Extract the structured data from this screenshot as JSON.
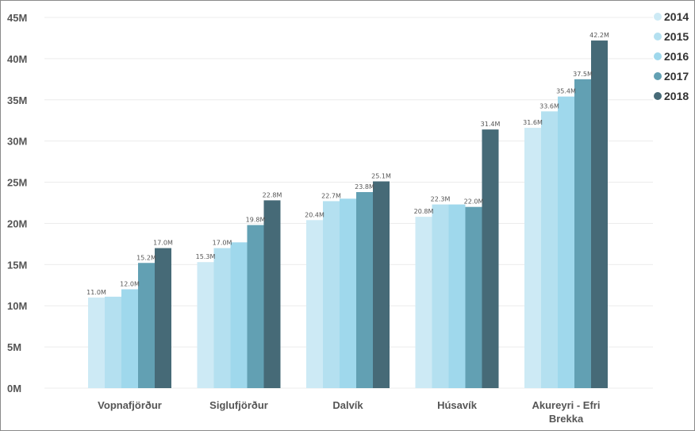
{
  "chart_data": {
    "type": "bar",
    "categories": [
      "Vopnafjörður",
      "Siglufjörður",
      "Dalvík",
      "Húsavík",
      "Akureyri - Efri Brekka"
    ],
    "category_lines": [
      [
        "Vopnafjörður"
      ],
      [
        "Siglufjörður"
      ],
      [
        "Dalvík"
      ],
      [
        "Húsavík"
      ],
      [
        "Akureyri - Efri",
        "Brekka"
      ]
    ],
    "series": [
      {
        "name": "2014",
        "color": "#cdeaf5",
        "values": [
          11.0,
          15.3,
          20.4,
          20.8,
          31.6
        ]
      },
      {
        "name": "2015",
        "color": "#b4e0f0",
        "values": [
          11.1,
          17.0,
          22.7,
          22.3,
          33.6
        ]
      },
      {
        "name": "2016",
        "color": "#9fd8ec",
        "values": [
          12.0,
          17.7,
          23.0,
          22.3,
          35.4
        ]
      },
      {
        "name": "2017",
        "color": "#62a0b3",
        "values": [
          15.2,
          19.8,
          23.8,
          22.0,
          37.5
        ]
      },
      {
        "name": "2018",
        "color": "#466a77",
        "values": [
          17.0,
          22.8,
          25.1,
          31.4,
          42.2
        ]
      }
    ],
    "data_labels": [
      [
        {
          "series": 0,
          "text": "11.0M"
        },
        {
          "series": 2,
          "text": "12.0M"
        },
        {
          "series": 3,
          "text": "15.2M"
        },
        {
          "series": 4,
          "text": "17.0M"
        }
      ],
      [
        {
          "series": 0,
          "text": "15.3M"
        },
        {
          "series": 1,
          "text": "17.0M"
        },
        {
          "series": 3,
          "text": "19.8M"
        },
        {
          "series": 4,
          "text": "22.8M"
        }
      ],
      [
        {
          "series": 0,
          "text": "20.4M"
        },
        {
          "series": 1,
          "text": "22.7M"
        },
        {
          "series": 3,
          "text": "23.8M"
        },
        {
          "series": 4,
          "text": "25.1M"
        }
      ],
      [
        {
          "series": 0,
          "text": "20.8M"
        },
        {
          "series": 1,
          "text": "22.3M"
        },
        {
          "series": 3,
          "text": "22.0M"
        },
        {
          "series": 4,
          "text": "31.4M"
        }
      ],
      [
        {
          "series": 0,
          "text": "31.6M"
        },
        {
          "series": 1,
          "text": "33.6M"
        },
        {
          "series": 2,
          "text": "35.4M"
        },
        {
          "series": 3,
          "text": "37.5M"
        },
        {
          "series": 4,
          "text": "42.2M"
        }
      ]
    ],
    "yticks": [
      "0M",
      "5M",
      "10M",
      "15M",
      "20M",
      "25M",
      "30M",
      "35M",
      "40M",
      "45M"
    ],
    "ylim": [
      0,
      45
    ],
    "unit": "M",
    "grid": true,
    "legend_position": "top-right",
    "title": "",
    "xlabel": "",
    "ylabel": ""
  }
}
